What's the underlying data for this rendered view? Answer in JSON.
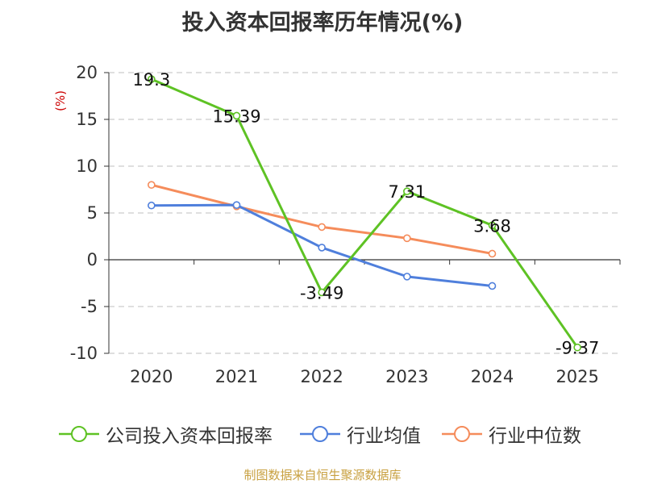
{
  "chart_data": {
    "type": "line",
    "title": "投入资本回报率历年情况(%)",
    "ylabel": "(%)",
    "xlabel": "",
    "categories": [
      "2020",
      "2021",
      "2022",
      "2023",
      "2024",
      "2025"
    ],
    "ylim": [
      -10,
      20
    ],
    "yticks": [
      20,
      15,
      10,
      5,
      0,
      -5,
      -10
    ],
    "grid": true,
    "legend_position": "bottom",
    "series": [
      {
        "name": "公司投入资本回报率",
        "values": [
          19.3,
          15.39,
          -3.49,
          7.31,
          3.68,
          -9.37
        ],
        "labels": [
          "19.3",
          "15.39",
          "-3.49",
          "7.31",
          "3.68",
          "-9.37"
        ],
        "color": "#5ec224"
      },
      {
        "name": "行业均值",
        "values": [
          5.8,
          5.85,
          1.3,
          -1.8,
          -2.8,
          null
        ],
        "color": "#4f7fdc"
      },
      {
        "name": "行业中位数",
        "values": [
          8.0,
          5.7,
          3.5,
          2.3,
          0.65,
          null
        ],
        "color": "#f58c5b"
      }
    ]
  },
  "source": "制图数据来自恒生聚源数据库"
}
